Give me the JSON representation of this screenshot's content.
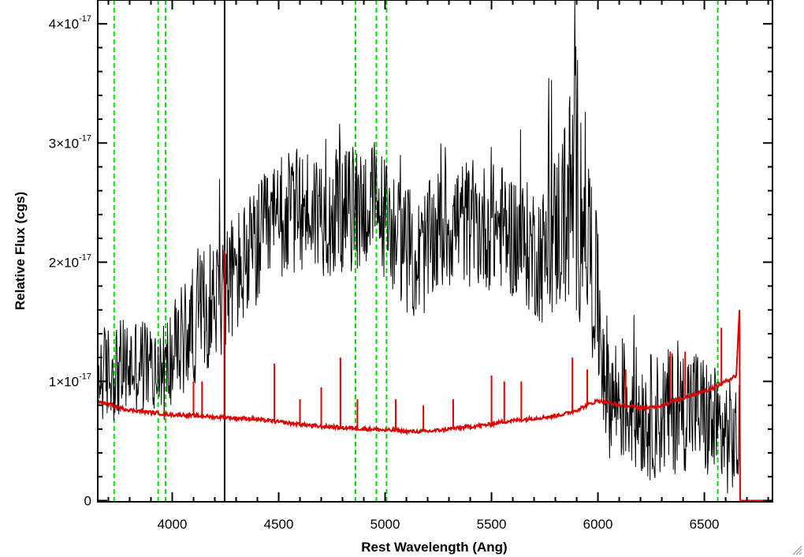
{
  "chart_data": {
    "type": "line",
    "title": "",
    "xlabel": "Rest Wavelength (Ang)",
    "ylabel": "Relative Flux (cgs)",
    "xlim": [
      3650,
      6820
    ],
    "ylim": [
      -1e-19,
      4.2e-17
    ],
    "x_ticks": [
      {
        "value": 4000,
        "label": "4000"
      },
      {
        "value": 4500,
        "label": "4500"
      },
      {
        "value": 5000,
        "label": "5000"
      },
      {
        "value": 5500,
        "label": "5500"
      },
      {
        "value": 6000,
        "label": "6000"
      },
      {
        "value": 6500,
        "label": "6500"
      }
    ],
    "y_ticks": [
      {
        "value": 0,
        "mantissa": "0",
        "exponent": ""
      },
      {
        "value": 1e-17,
        "mantissa": "1×10",
        "exponent": "-17"
      },
      {
        "value": 2e-17,
        "mantissa": "2×10",
        "exponent": "-17"
      },
      {
        "value": 3e-17,
        "mantissa": "3×10",
        "exponent": "-17"
      },
      {
        "value": 4e-17,
        "mantissa": "4×10",
        "exponent": "-17"
      }
    ],
    "reference_lines": {
      "dashed_green": [
        3727,
        3934,
        3969,
        4861,
        4959,
        5007,
        6563
      ],
      "solid_black": [
        4246
      ],
      "color_dashed": "#00dd00",
      "color_solid": "#000000"
    },
    "series": [
      {
        "color": "#000000",
        "style": "noisy spectrum",
        "envelope_x": [
          3650,
          3750,
          3850,
          3950,
          4050,
          4150,
          4250,
          4350,
          4450,
          4550,
          4650,
          4750,
          4850,
          4950,
          5050,
          5150,
          5250,
          5350,
          5450,
          5550,
          5650,
          5750,
          5850,
          5900,
          5950,
          6050,
          6150,
          6250,
          6350,
          6450,
          6550,
          6650
        ],
        "envelope_y": [
          1.05e-17,
          1.1e-17,
          1.15e-17,
          1.05e-17,
          1.35e-17,
          1.6e-17,
          1.8e-17,
          2e-17,
          2.25e-17,
          2.4e-17,
          2.45e-17,
          2.4e-17,
          2.45e-17,
          2.5e-17,
          2.25e-17,
          2e-17,
          2.25e-17,
          2.35e-17,
          2.3e-17,
          2.3e-17,
          2.15e-17,
          2.05e-17,
          2.45e-17,
          2.7e-17,
          2.3e-17,
          9e-18,
          8e-18,
          7e-18,
          7.5e-18,
          8e-18,
          6e-18,
          5e-18
        ],
        "noise_y": [
          3.5e-18,
          3.5e-18,
          3.5e-18,
          3.5e-18,
          4e-18,
          4.5e-18,
          4.5e-18,
          4.5e-18,
          4.5e-18,
          4.5e-18,
          4.5e-18,
          4.5e-18,
          4.5e-18,
          4.5e-18,
          4.5e-18,
          4.5e-18,
          4.5e-18,
          4.5e-18,
          4.5e-18,
          4.5e-18,
          4.5e-18,
          5e-18,
          7e-18,
          1e-17,
          7e-18,
          4.5e-18,
          4.5e-18,
          4.5e-18,
          4.5e-18,
          4.5e-18,
          4.5e-18,
          4e-18
        ]
      },
      {
        "color": "#dd0000",
        "style": "error spectrum",
        "x": [
          3650,
          3700,
          3750,
          3800,
          3850,
          3900,
          3950,
          4000,
          4050,
          4100,
          4150,
          4200,
          4250,
          4300,
          4350,
          4400,
          4450,
          4500,
          4550,
          4600,
          4650,
          4700,
          4750,
          4800,
          4850,
          4900,
          4950,
          5000,
          5050,
          5100,
          5150,
          5200,
          5250,
          5300,
          5350,
          5400,
          5450,
          5500,
          5550,
          5600,
          5650,
          5700,
          5750,
          5800,
          5850,
          5900,
          5950,
          6000,
          6050,
          6100,
          6150,
          6200,
          6250,
          6300,
          6350,
          6400,
          6450,
          6500,
          6550,
          6600,
          6650,
          6665,
          6670,
          6820
        ],
        "y": [
          8.3e-18,
          8.1e-18,
          7.8e-18,
          7.6e-18,
          7.5e-18,
          7.4e-18,
          7.3e-18,
          7.2e-18,
          7.2e-18,
          7.1e-18,
          7.1e-18,
          7e-18,
          7e-18,
          6.9e-18,
          6.9e-18,
          6.8e-18,
          6.7e-18,
          6.6e-18,
          6.5e-18,
          6.4e-18,
          6.3e-18,
          6.2e-18,
          6.2e-18,
          6.1e-18,
          6.1e-18,
          6e-18,
          6e-18,
          5.9e-18,
          5.9e-18,
          5.8e-18,
          5.8e-18,
          5.8e-18,
          5.9e-18,
          6e-18,
          6.1e-18,
          6.2e-18,
          6.3e-18,
          6.4e-18,
          6.6e-18,
          6.7e-18,
          6.8e-18,
          6.9e-18,
          7e-18,
          7.1e-18,
          7.3e-18,
          7.6e-18,
          8e-18,
          8.4e-18,
          8.2e-18,
          8e-18,
          7.9e-18,
          7.8e-18,
          7.8e-18,
          8e-18,
          8.3e-18,
          8.6e-18,
          8.9e-18,
          9.2e-18,
          9.5e-18,
          1e-17,
          1.05e-17,
          1.6e-17,
          0.0,
          0.0
        ],
        "spikes": [
          {
            "x": 4100,
            "y": 1e-17
          },
          {
            "x": 4140,
            "y": 1e-17
          },
          {
            "x": 4245,
            "y": 2.1e-17
          },
          {
            "x": 4480,
            "y": 1.15e-17
          },
          {
            "x": 4600,
            "y": 8.5e-18
          },
          {
            "x": 4700,
            "y": 9.5e-18
          },
          {
            "x": 4790,
            "y": 1.2e-17
          },
          {
            "x": 4870,
            "y": 8.5e-18
          },
          {
            "x": 5050,
            "y": 8.5e-18
          },
          {
            "x": 5180,
            "y": 8e-18
          },
          {
            "x": 5320,
            "y": 8.5e-18
          },
          {
            "x": 5500,
            "y": 1.05e-17
          },
          {
            "x": 5560,
            "y": 1e-17
          },
          {
            "x": 5640,
            "y": 1e-17
          },
          {
            "x": 5880,
            "y": 1.2e-17
          },
          {
            "x": 5950,
            "y": 1.1e-17
          },
          {
            "x": 6130,
            "y": 1.1e-17
          },
          {
            "x": 6340,
            "y": 1.25e-17
          },
          {
            "x": 6410,
            "y": 1.25e-17
          },
          {
            "x": 6580,
            "y": 1.45e-17
          }
        ]
      }
    ]
  }
}
